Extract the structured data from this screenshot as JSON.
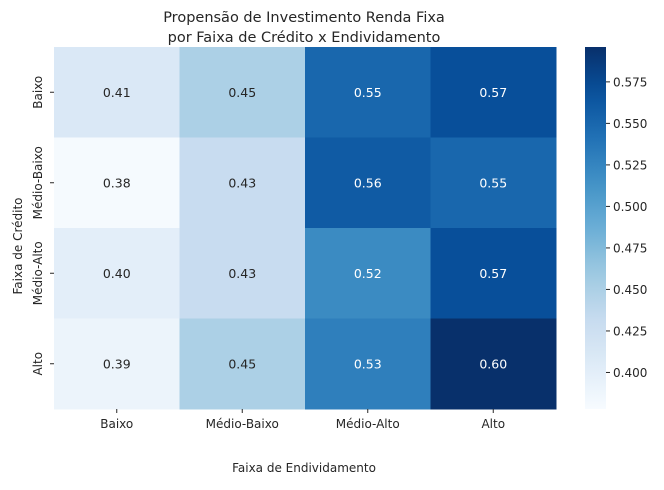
{
  "chart_data": {
    "type": "heatmap",
    "title_lines": [
      "Propensão de Investimento Renda Fixa",
      "por Faixa de Crédito x Endividamento"
    ],
    "xlabel": "Faixa de Endividamento",
    "ylabel": "Faixa de Crédito",
    "x_categories": [
      "Baixo",
      "Médio-Baixo",
      "Médio-Alto",
      "Alto"
    ],
    "y_categories": [
      "Baixo",
      "Médio-Baixo",
      "Médio-Alto",
      "Alto"
    ],
    "values": [
      [
        0.41,
        0.45,
        0.55,
        0.57
      ],
      [
        0.38,
        0.43,
        0.56,
        0.55
      ],
      [
        0.4,
        0.43,
        0.52,
        0.57
      ],
      [
        0.39,
        0.45,
        0.53,
        0.6
      ]
    ],
    "cell_labels": [
      [
        "0.41",
        "0.45",
        "0.55",
        "0.57"
      ],
      [
        "0.38",
        "0.43",
        "0.56",
        "0.55"
      ],
      [
        "0.40",
        "0.43",
        "0.52",
        "0.57"
      ],
      [
        "0.39",
        "0.45",
        "0.53",
        "0.60"
      ]
    ],
    "colormap": "Blues",
    "color_range": [
      0.378,
      0.596
    ],
    "colorbar_ticks": [
      "0.400",
      "0.425",
      "0.450",
      "0.475",
      "0.500",
      "0.525",
      "0.550",
      "0.575"
    ],
    "colorbar_tick_values": [
      0.4,
      0.425,
      0.45,
      0.475,
      0.5,
      0.525,
      0.55,
      0.575
    ],
    "annotation_text_colors": {
      "light_cells": "#262626",
      "dark_cells": "#ffffff"
    }
  }
}
